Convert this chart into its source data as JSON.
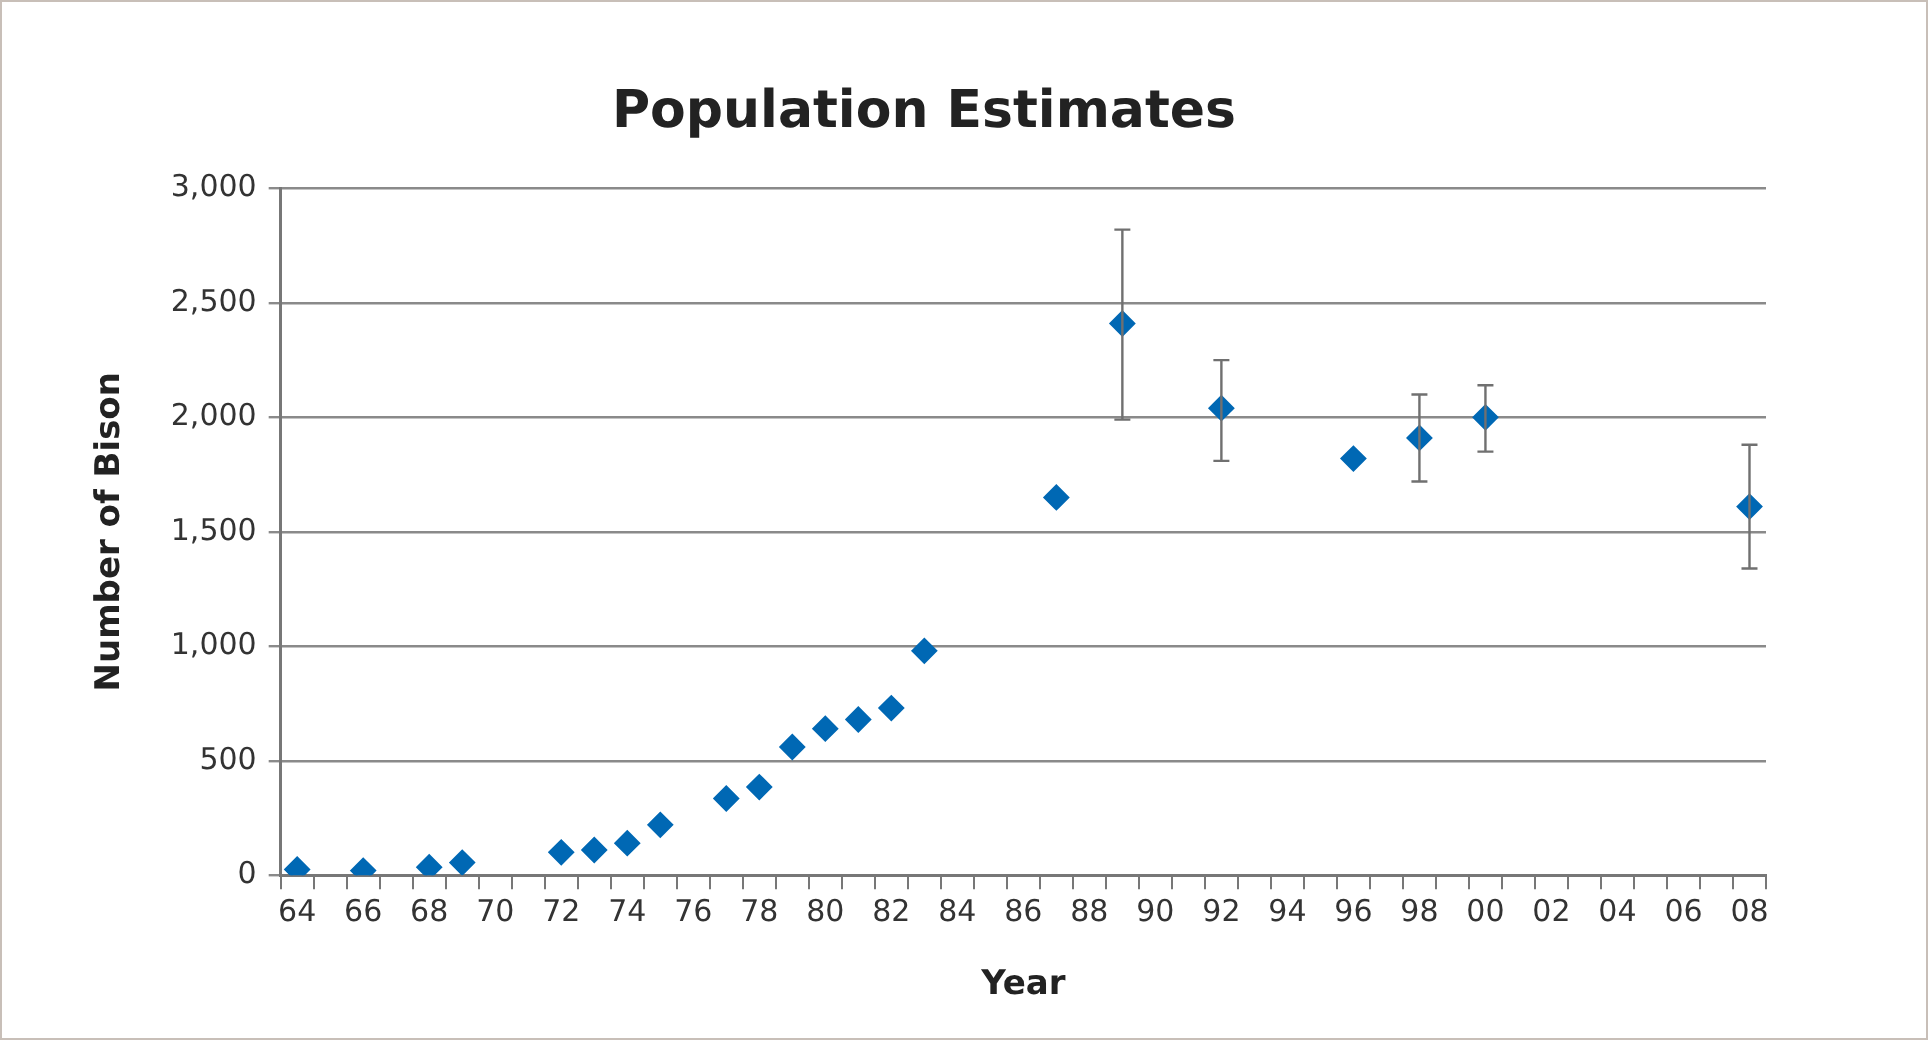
{
  "chart_data": {
    "type": "scatter",
    "title": "Population Estimates",
    "xlabel": "Year",
    "ylabel": "Number of Bison",
    "x": [
      1964,
      1966,
      1968,
      1969,
      1972,
      1973,
      1974,
      1975,
      1977,
      1978,
      1979,
      1980,
      1981,
      1982,
      1983,
      1987,
      1989,
      1992,
      1996,
      1998,
      2000,
      2008
    ],
    "values": [
      25,
      20,
      35,
      55,
      100,
      110,
      140,
      220,
      335,
      385,
      560,
      640,
      680,
      730,
      980,
      1650,
      2410,
      2040,
      1820,
      1910,
      2000,
      1610
    ],
    "errors": [
      null,
      null,
      null,
      null,
      null,
      null,
      null,
      null,
      null,
      null,
      null,
      null,
      null,
      null,
      null,
      null,
      [
        1990,
        2820
      ],
      [
        1810,
        2250
      ],
      null,
      [
        1720,
        2100
      ],
      [
        1850,
        2140
      ],
      [
        1340,
        1880
      ]
    ],
    "color": "#0068b4",
    "marker": "diamond",
    "grid": "y",
    "xlim": [
      1963.5,
      2008.5
    ],
    "xticks": [
      {
        "value": 1964,
        "label": "64"
      },
      {
        "value": 1966,
        "label": "66"
      },
      {
        "value": 1968,
        "label": "68"
      },
      {
        "value": 1970,
        "label": "70"
      },
      {
        "value": 1972,
        "label": "72"
      },
      {
        "value": 1974,
        "label": "74"
      },
      {
        "value": 1976,
        "label": "76"
      },
      {
        "value": 1978,
        "label": "78"
      },
      {
        "value": 1980,
        "label": "80"
      },
      {
        "value": 1982,
        "label": "82"
      },
      {
        "value": 1984,
        "label": "84"
      },
      {
        "value": 1986,
        "label": "86"
      },
      {
        "value": 1988,
        "label": "88"
      },
      {
        "value": 1990,
        "label": "90"
      },
      {
        "value": 1992,
        "label": "92"
      },
      {
        "value": 1994,
        "label": "94"
      },
      {
        "value": 1996,
        "label": "96"
      },
      {
        "value": 1998,
        "label": "98"
      },
      {
        "value": 2000,
        "label": "00"
      },
      {
        "value": 2002,
        "label": "02"
      },
      {
        "value": 2004,
        "label": "04"
      },
      {
        "value": 2006,
        "label": "06"
      },
      {
        "value": 2008,
        "label": "08"
      },
      {
        "value": 1963.5,
        "label": null
      },
      {
        "value": 1964.5,
        "label": null
      },
      {
        "value": 1965.5,
        "label": null
      },
      {
        "value": 1966.5,
        "label": null
      },
      {
        "value": 1967.5,
        "label": null
      },
      {
        "value": 1968.5,
        "label": null
      },
      {
        "value": 1969.5,
        "label": null
      },
      {
        "value": 1970.5,
        "label": null
      },
      {
        "value": 1971.5,
        "label": null
      },
      {
        "value": 1972.5,
        "label": null
      },
      {
        "value": 1973.5,
        "label": null
      },
      {
        "value": 1974.5,
        "label": null
      },
      {
        "value": 1975.5,
        "label": null
      },
      {
        "value": 1976.5,
        "label": null
      },
      {
        "value": 1977.5,
        "label": null
      },
      {
        "value": 1978.5,
        "label": null
      },
      {
        "value": 1979.5,
        "label": null
      },
      {
        "value": 1980.5,
        "label": null
      },
      {
        "value": 1981.5,
        "label": null
      },
      {
        "value": 1982.5,
        "label": null
      },
      {
        "value": 1983.5,
        "label": null
      },
      {
        "value": 1984.5,
        "label": null
      },
      {
        "value": 1985.5,
        "label": null
      },
      {
        "value": 1986.5,
        "label": null
      },
      {
        "value": 1987.5,
        "label": null
      },
      {
        "value": 1988.5,
        "label": null
      },
      {
        "value": 1989.5,
        "label": null
      },
      {
        "value": 1990.5,
        "label": null
      },
      {
        "value": 1991.5,
        "label": null
      },
      {
        "value": 1992.5,
        "label": null
      },
      {
        "value": 1993.5,
        "label": null
      },
      {
        "value": 1994.5,
        "label": null
      },
      {
        "value": 1995.5,
        "label": null
      },
      {
        "value": 1996.5,
        "label": null
      },
      {
        "value": 1997.5,
        "label": null
      },
      {
        "value": 1998.5,
        "label": null
      },
      {
        "value": 1999.5,
        "label": null
      },
      {
        "value": 2000.5,
        "label": null
      },
      {
        "value": 2001.5,
        "label": null
      },
      {
        "value": 2002.5,
        "label": null
      },
      {
        "value": 2003.5,
        "label": null
      },
      {
        "value": 2004.5,
        "label": null
      },
      {
        "value": 2005.5,
        "label": null
      },
      {
        "value": 2006.5,
        "label": null
      },
      {
        "value": 2007.5,
        "label": null
      },
      {
        "value": 2008.5,
        "label": null
      }
    ],
    "ylim": [
      0,
      3000
    ],
    "yticks": [
      {
        "value": 0,
        "label": "0"
      },
      {
        "value": 500,
        "label": "500"
      },
      {
        "value": 1000,
        "label": "1,000"
      },
      {
        "value": 1500,
        "label": "1,500"
      },
      {
        "value": 2000,
        "label": "2,000"
      },
      {
        "value": 2500,
        "label": "2,500"
      },
      {
        "value": 3000,
        "label": "3,000"
      }
    ]
  }
}
